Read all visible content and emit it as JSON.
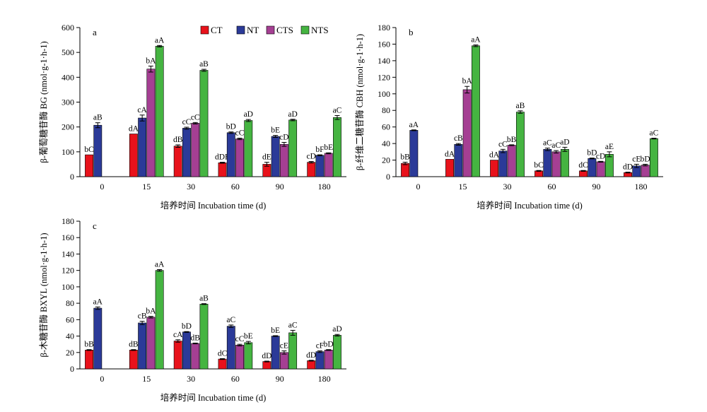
{
  "legend": {
    "items": [
      {
        "name": "CT",
        "color": "#e8121b"
      },
      {
        "name": "NT",
        "color": "#2b3a98"
      },
      {
        "name": "CTS",
        "color": "#a53f93"
      },
      {
        "name": "NTS",
        "color": "#45b441"
      }
    ]
  },
  "chart_data": [
    {
      "type": "bar",
      "panel_label": "a",
      "ylabel": "β-葡萄糖苷酶 BG (nmol·g-1·h-1)",
      "xlabel": "培养时间 Incubation time (d)",
      "ylim": [
        0,
        600
      ],
      "ytick_step": 100,
      "categories": [
        "0",
        "15",
        "30",
        "60",
        "90",
        "180"
      ],
      "series": [
        {
          "name": "CT",
          "values": [
            88,
            172,
            123,
            56,
            50,
            58
          ],
          "errors": [
            0,
            0,
            5,
            2,
            8,
            3
          ],
          "labels": [
            "bC",
            "dA",
            "dB",
            "dDE",
            "dE",
            "cD"
          ]
        },
        {
          "name": "NT",
          "values": [
            207,
            236,
            195,
            177,
            162,
            86
          ],
          "errors": [
            10,
            12,
            4,
            3,
            4,
            2
          ],
          "labels": [
            "aB",
            "cA",
            "cC",
            "bD",
            "bE",
            "bF"
          ]
        },
        {
          "name": "CTS",
          "values": [
            null,
            433,
            215,
            152,
            130,
            94
          ],
          "errors": [
            0,
            12,
            3,
            3,
            8,
            2
          ],
          "labels": [
            "",
            "bA",
            "cC",
            "cC",
            "cD",
            "bE"
          ]
        },
        {
          "name": "NTS",
          "values": [
            null,
            525,
            428,
            226,
            228,
            238
          ],
          "errors": [
            0,
            3,
            4,
            4,
            3,
            8
          ],
          "labels": [
            "",
            "aA",
            "aB",
            "aD",
            "aD",
            "aC"
          ]
        }
      ]
    },
    {
      "type": "bar",
      "panel_label": "b",
      "ylabel": "β-纤维二糖苷酶 CBH (nmol·g-1·h-1)",
      "xlabel": "培养时间 Incubation time (d)",
      "ylim": [
        0,
        180
      ],
      "ytick_step": 20,
      "categories": [
        "0",
        "15",
        "30",
        "60",
        "90",
        "180"
      ],
      "series": [
        {
          "name": "CT",
          "values": [
            16,
            21,
            20,
            7,
            7,
            5
          ],
          "errors": [
            1.5,
            0,
            0,
            0.5,
            0.5,
            0.5
          ],
          "labels": [
            "bB",
            "dA",
            "dA",
            "bC",
            "dC",
            "dD"
          ]
        },
        {
          "name": "NT",
          "values": [
            56,
            39,
            31,
            33,
            22,
            13
          ],
          "errors": [
            0.5,
            1,
            2,
            1.5,
            0.5,
            2
          ],
          "labels": [
            "aA",
            "cB",
            "cC",
            "aC",
            "bD",
            "cE"
          ]
        },
        {
          "name": "CTS",
          "values": [
            null,
            105,
            38,
            30,
            18,
            14
          ],
          "errors": [
            0,
            4,
            0.5,
            1.5,
            0.5,
            1
          ],
          "labels": [
            "",
            "bA",
            "bB",
            "aC",
            "cD",
            "bD"
          ]
        },
        {
          "name": "NTS",
          "values": [
            null,
            158,
            78,
            33,
            27,
            46
          ],
          "errors": [
            0,
            1,
            1.5,
            2.5,
            3,
            0.5
          ],
          "labels": [
            "",
            "aA",
            "aB",
            "aD",
            "aE",
            "aC"
          ]
        }
      ]
    },
    {
      "type": "bar",
      "panel_label": "c",
      "ylabel": "β-木糖苷酶 BXYL (nmol·g-1·h-1)",
      "xlabel": "培养时间 Incubation time (d)",
      "ylim": [
        0,
        180
      ],
      "ytick_step": 20,
      "categories": [
        "0",
        "15",
        "30",
        "60",
        "90",
        "180"
      ],
      "series": [
        {
          "name": "CT",
          "values": [
            23,
            23,
            34,
            12,
            9,
            10
          ],
          "errors": [
            0.5,
            0.5,
            1.5,
            0.5,
            0.5,
            0.5
          ],
          "labels": [
            "bB",
            "dB",
            "cA",
            "dC",
            "dD",
            "dD"
          ]
        },
        {
          "name": "NT",
          "values": [
            74,
            56,
            45,
            52,
            40,
            21
          ],
          "errors": [
            1.5,
            2,
            0.5,
            1.5,
            0.5,
            1
          ],
          "labels": [
            "aA",
            "cB",
            "bD",
            "aC",
            "bE",
            "cF"
          ]
        },
        {
          "name": "CTS",
          "values": [
            null,
            63,
            31,
            29,
            20,
            23
          ],
          "errors": [
            0,
            1,
            0.5,
            1,
            2,
            0.5
          ],
          "labels": [
            "",
            "bA",
            "dB",
            "cC",
            "cE",
            "bD"
          ]
        },
        {
          "name": "NTS",
          "values": [
            null,
            120,
            79,
            32,
            44,
            41
          ],
          "errors": [
            0,
            1,
            0.5,
            1.5,
            3,
            1
          ],
          "labels": [
            "",
            "aA",
            "aB",
            "bE",
            "aC",
            "aD"
          ]
        }
      ]
    }
  ]
}
